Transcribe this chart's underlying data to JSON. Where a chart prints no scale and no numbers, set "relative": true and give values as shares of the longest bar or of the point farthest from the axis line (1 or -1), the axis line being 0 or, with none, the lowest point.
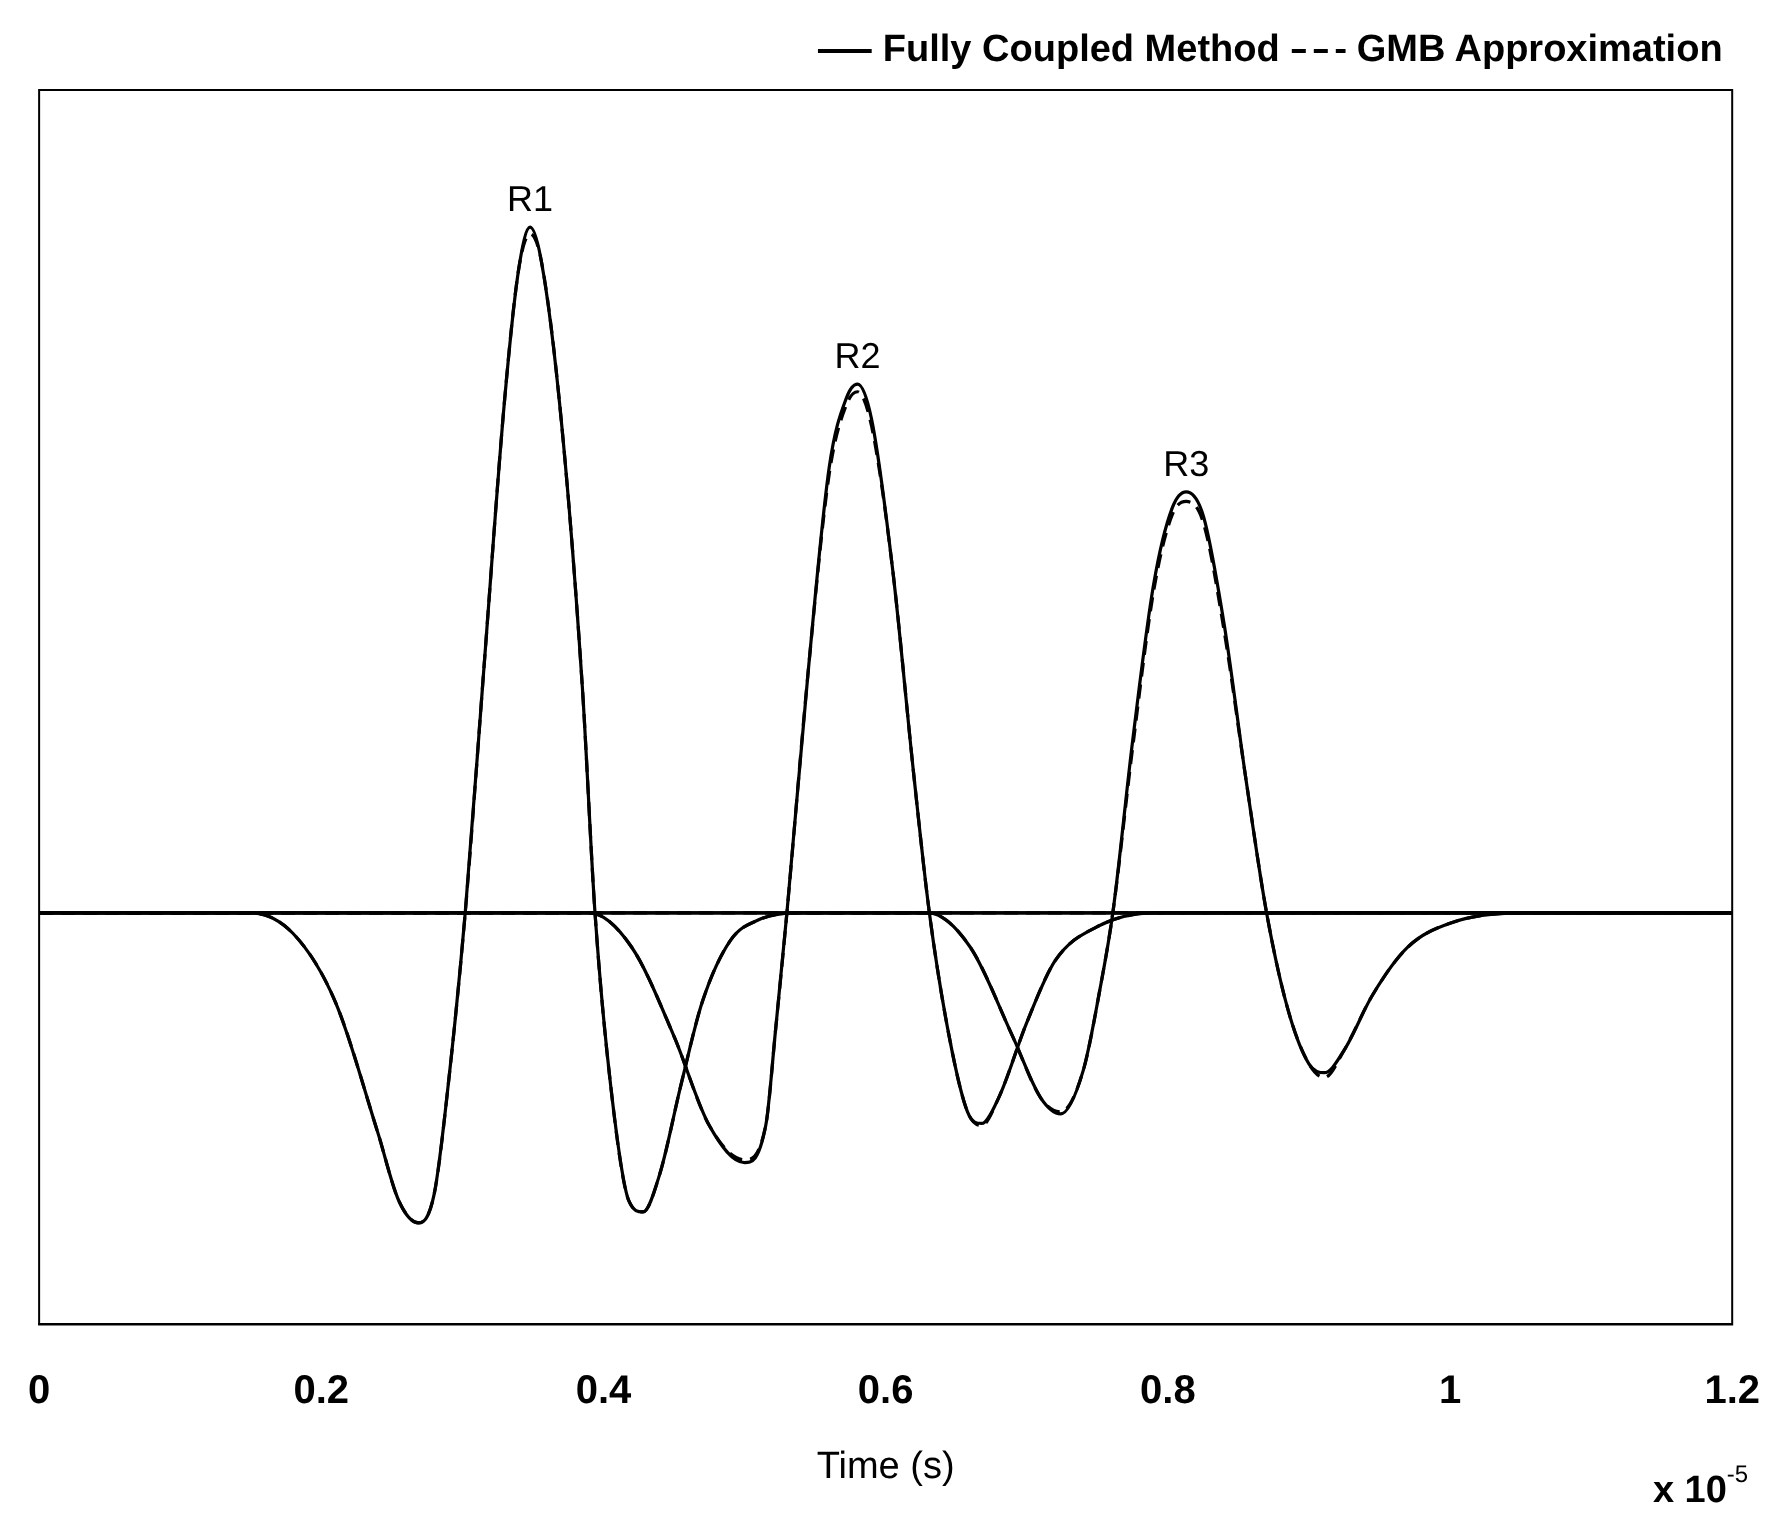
{
  "chart_data": {
    "type": "line",
    "relative": true,
    "xlabel": "Time (s)",
    "xlim": [
      0,
      1.2
    ],
    "xticks": [
      0,
      0.2,
      0.4,
      0.6,
      0.8,
      1,
      1.2
    ],
    "grid": false,
    "legend": "top right",
    "marker": "none",
    "annotations": [
      {
        "text": "R1",
        "x": 0.348,
        "y": 1
      },
      {
        "text": "R2",
        "x": 0.58,
        "y": 0.771
      },
      {
        "text": "R3",
        "x": 0.813,
        "y": 0.614
      },
      "x 10$^{-5}$"
    ],
    "series": [
      {
        "name": "Fully Coupled Method",
        "color": "#000000",
        "line_style": "solid",
        "x": [
          0,
          0.15,
          0.18,
          0.21,
          0.24,
          0.255,
          0.269,
          0.28,
          0.29,
          0.302,
          0.315,
          0.33,
          0.34,
          0.348,
          0.356,
          0.37,
          0.385,
          0.394,
          0.405,
          0.418,
          0.428,
          0.44,
          0.455,
          0.47,
          0.49,
          0.51,
          0.537,
          1.2
        ],
        "values": [
          0,
          0,
          -0.03,
          -0.13,
          -0.32,
          -0.42,
          -0.452,
          -0.41,
          -0.25,
          0,
          0.35,
          0.75,
          0.94,
          1,
          0.95,
          0.72,
          0.33,
          0,
          -0.25,
          -0.42,
          -0.436,
          -0.38,
          -0.25,
          -0.13,
          -0.04,
          -0.01,
          0,
          0
        ]
      },
      {
        "color": "#000000",
        "line_style": "solid",
        "x": [
          0,
          0.39,
          0.42,
          0.45,
          0.475,
          0.5,
          0.515,
          0.522,
          0.53,
          0.545,
          0.56,
          0.572,
          0.58,
          0.59,
          0.605,
          0.62,
          0.631,
          0.645,
          0.658,
          0.668,
          0.68,
          0.7,
          0.72,
          0.75,
          0.79,
          1.2
        ],
        "values": [
          0,
          0,
          -0.05,
          -0.18,
          -0.31,
          -0.364,
          -0.31,
          -0.17,
          0,
          0.35,
          0.65,
          0.75,
          0.771,
          0.72,
          0.5,
          0.2,
          0,
          -0.18,
          -0.29,
          -0.307,
          -0.27,
          -0.16,
          -0.07,
          -0.02,
          0,
          0
        ]
      },
      {
        "color": "#000000",
        "line_style": "solid",
        "x": [
          0,
          0.63,
          0.66,
          0.69,
          0.71,
          0.724,
          0.74,
          0.752,
          0.761,
          0.775,
          0.79,
          0.803,
          0.813,
          0.825,
          0.84,
          0.855,
          0.87,
          0.885,
          0.9,
          0.911,
          0.925,
          0.945,
          0.97,
          1,
          1.05,
          1.2
        ],
        "values": [
          0,
          0,
          -0.05,
          -0.18,
          -0.27,
          -0.293,
          -0.23,
          -0.11,
          0,
          0.25,
          0.48,
          0.59,
          0.614,
          0.58,
          0.42,
          0.2,
          0,
          -0.14,
          -0.22,
          -0.233,
          -0.2,
          -0.12,
          -0.05,
          -0.015,
          0,
          0
        ]
      },
      {
        "name": "GMB Approximation",
        "color": "#000000",
        "line_style": "dashed",
        "x": [
          0,
          0.15,
          0.18,
          0.21,
          0.24,
          0.255,
          0.269,
          0.28,
          0.29,
          0.302,
          0.315,
          0.33,
          0.34,
          0.348,
          0.356,
          0.37,
          0.385,
          0.394,
          0.405,
          0.418,
          0.428,
          0.44,
          0.455,
          0.47,
          0.49,
          0.51,
          0.537,
          1.2
        ],
        "values": [
          0,
          0,
          -0.03,
          -0.13,
          -0.32,
          -0.42,
          -0.452,
          -0.41,
          -0.25,
          0,
          0.35,
          0.75,
          0.94,
          0.99,
          0.95,
          0.72,
          0.33,
          0,
          -0.25,
          -0.42,
          -0.436,
          -0.38,
          -0.25,
          -0.13,
          -0.04,
          -0.01,
          0,
          0
        ]
      },
      {
        "color": "#000000",
        "line_style": "dashed",
        "x": [
          0,
          0.39,
          0.42,
          0.45,
          0.475,
          0.5,
          0.515,
          0.522,
          0.53,
          0.545,
          0.56,
          0.572,
          0.58,
          0.59,
          0.605,
          0.62,
          0.631,
          0.645,
          0.658,
          0.668,
          0.68,
          0.7,
          0.72,
          0.75,
          0.79,
          1.2
        ],
        "values": [
          0,
          0,
          -0.05,
          -0.18,
          -0.31,
          -0.36,
          -0.31,
          -0.17,
          0,
          0.35,
          0.64,
          0.74,
          0.76,
          0.71,
          0.5,
          0.2,
          0,
          -0.18,
          -0.29,
          -0.31,
          -0.27,
          -0.16,
          -0.07,
          -0.02,
          0,
          0
        ]
      },
      {
        "color": "#000000",
        "line_style": "dashed",
        "x": [
          0,
          0.63,
          0.66,
          0.69,
          0.71,
          0.724,
          0.74,
          0.752,
          0.761,
          0.775,
          0.79,
          0.803,
          0.813,
          0.825,
          0.84,
          0.855,
          0.87,
          0.885,
          0.9,
          0.911,
          0.925,
          0.945,
          0.97,
          1,
          1.05,
          1.2
        ],
        "values": [
          0,
          0,
          -0.05,
          -0.18,
          -0.27,
          -0.29,
          -0.23,
          -0.11,
          0,
          0.24,
          0.47,
          0.58,
          0.6,
          0.57,
          0.41,
          0.2,
          0,
          -0.14,
          -0.22,
          -0.24,
          -0.2,
          -0.12,
          -0.05,
          -0.015,
          0,
          0
        ]
      }
    ]
  }
}
